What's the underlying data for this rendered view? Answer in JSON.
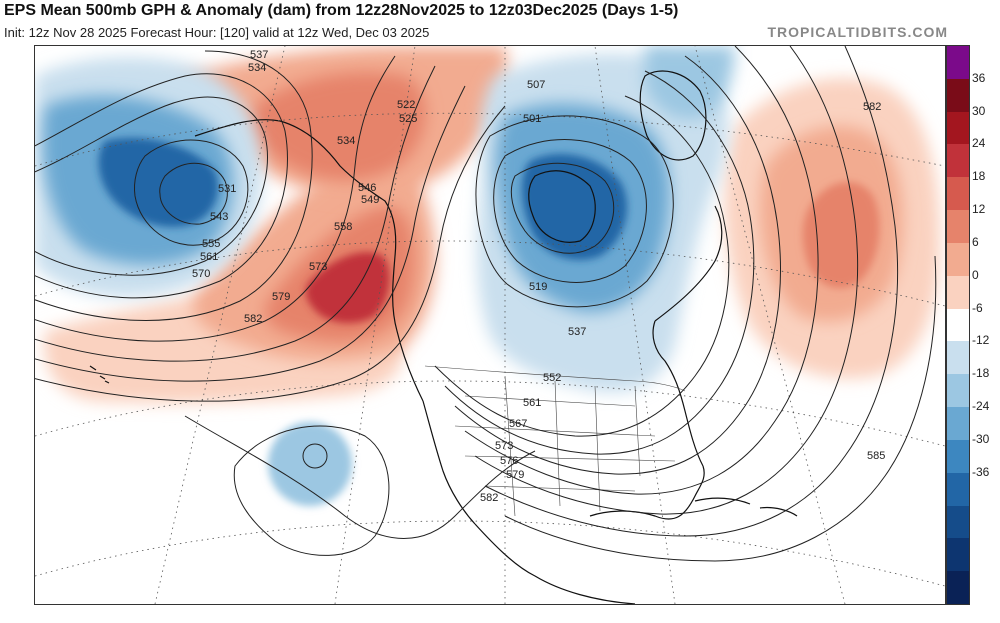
{
  "header": {
    "title": "EPS Mean 500mb GPH & Anomaly (dam) from 12z28Nov2025 to 12z03Dec2025 (Days 1-5)",
    "subtitle": "Init: 12z Nov 28 2025   Forecast Hour: [120]   valid at 12z Wed, Dec 03 2025",
    "brand": "TROPICALTIDBITS.COM"
  },
  "colorbar": {
    "labels": [
      "36",
      "30",
      "24",
      "18",
      "12",
      "6",
      "0",
      "-6",
      "-12",
      "-18",
      "-24",
      "-30",
      "-36"
    ],
    "colors": [
      "#7b0a8a",
      "#7a0c18",
      "#a3161f",
      "#c1323a",
      "#d65a4e",
      "#e6836b",
      "#f2ab90",
      "#fad2c0",
      "#ffffff",
      "#c9dfee",
      "#9cc7e2",
      "#6aa8d2",
      "#3d87c0",
      "#2266a6",
      "#154c8a",
      "#0d3570",
      "#0a2256"
    ]
  },
  "contours": {
    "labels": [
      {
        "text": "537"
      },
      {
        "text": "534"
      },
      {
        "text": "531"
      },
      {
        "text": "543"
      },
      {
        "text": "555"
      },
      {
        "text": "561"
      },
      {
        "text": "570"
      },
      {
        "text": "579"
      },
      {
        "text": "582"
      },
      {
        "text": "522"
      },
      {
        "text": "525"
      },
      {
        "text": "534"
      },
      {
        "text": "546"
      },
      {
        "text": "549"
      },
      {
        "text": "558"
      },
      {
        "text": "573"
      },
      {
        "text": "507"
      },
      {
        "text": "501"
      },
      {
        "text": "519"
      },
      {
        "text": "537"
      },
      {
        "text": "552"
      },
      {
        "text": "561"
      },
      {
        "text": "567"
      },
      {
        "text": "573"
      },
      {
        "text": "576"
      },
      {
        "text": "579"
      },
      {
        "text": "582"
      },
      {
        "text": "582"
      },
      {
        "text": "585"
      }
    ]
  },
  "icons": {
    "map": "north-america-map",
    "colorbar": "anomaly-colorbar"
  }
}
